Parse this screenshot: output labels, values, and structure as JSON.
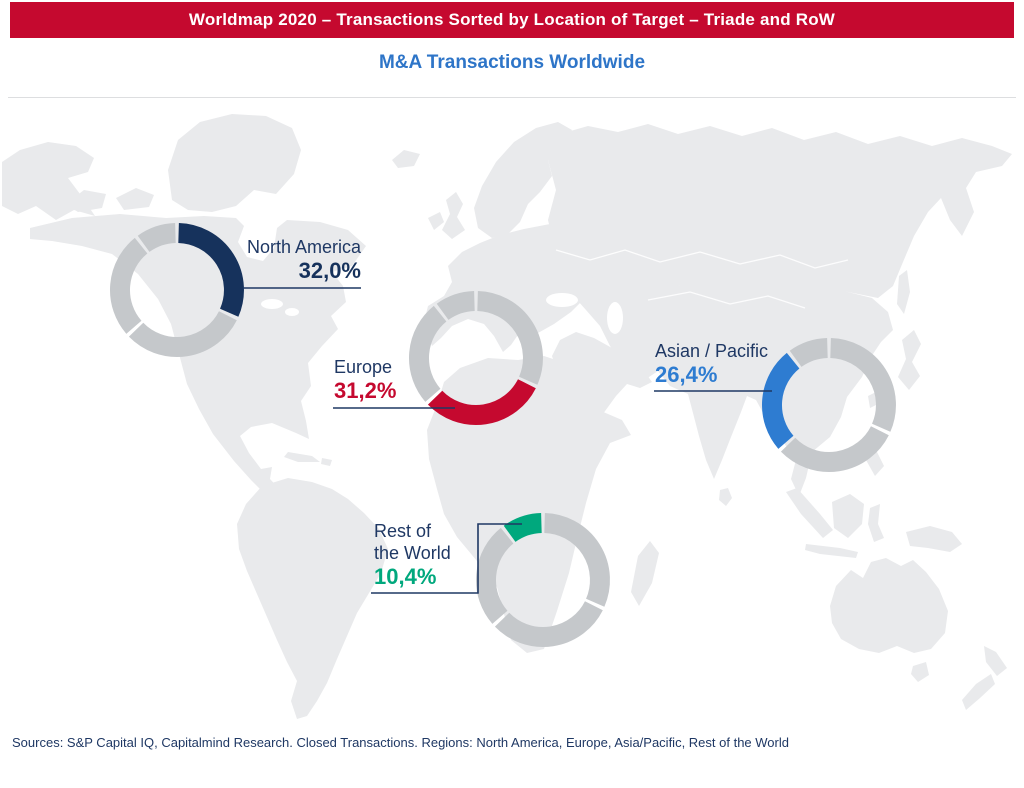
{
  "header": {
    "title": "Worldmap 2020 – Transactions Sorted by Location of Target – Triade and RoW"
  },
  "subtitle": "M&A Transactions Worldwide",
  "footer": {
    "sources": "Sources: S&P Capital IQ, Capitalmind Research. Closed Transactions. Regions: North America, Europe, Asia/Pacific, Rest of the World"
  },
  "colors": {
    "banner_red": "#C5092F",
    "subtitle_blue": "#2E75C8",
    "label_navy": "#1F3864",
    "leader_line_navy": "#1F3864",
    "ring_gray": "#C5C8CB",
    "map_land_gray": "#E9EAEC"
  },
  "chart_data": {
    "type": "pie",
    "subtype": "four donut charts placed over a world map, each highlighting one region segment",
    "title": "M&A Transactions Worldwide",
    "value_format": "percent with comma decimal",
    "total": 100.0,
    "legend_position": "callout labels with leader lines on map",
    "other_segment_color": "#C5C8CB",
    "series": [
      {
        "name": "North America",
        "label": "North America",
        "value": 32.0,
        "display": "32,0%",
        "color": "#16325C"
      },
      {
        "name": "Europe",
        "label": "Europe",
        "value": 31.2,
        "display": "31,2%",
        "color": "#C5092F"
      },
      {
        "name": "Asian / Pacific",
        "label": "Asian / Pacific",
        "value": 26.4,
        "display": "26,4%",
        "color": "#2E7CD1"
      },
      {
        "name": "Rest of the World",
        "label": "Rest of\nthe World",
        "value": 10.4,
        "display": "10,4%",
        "color": "#00A87D"
      }
    ]
  }
}
